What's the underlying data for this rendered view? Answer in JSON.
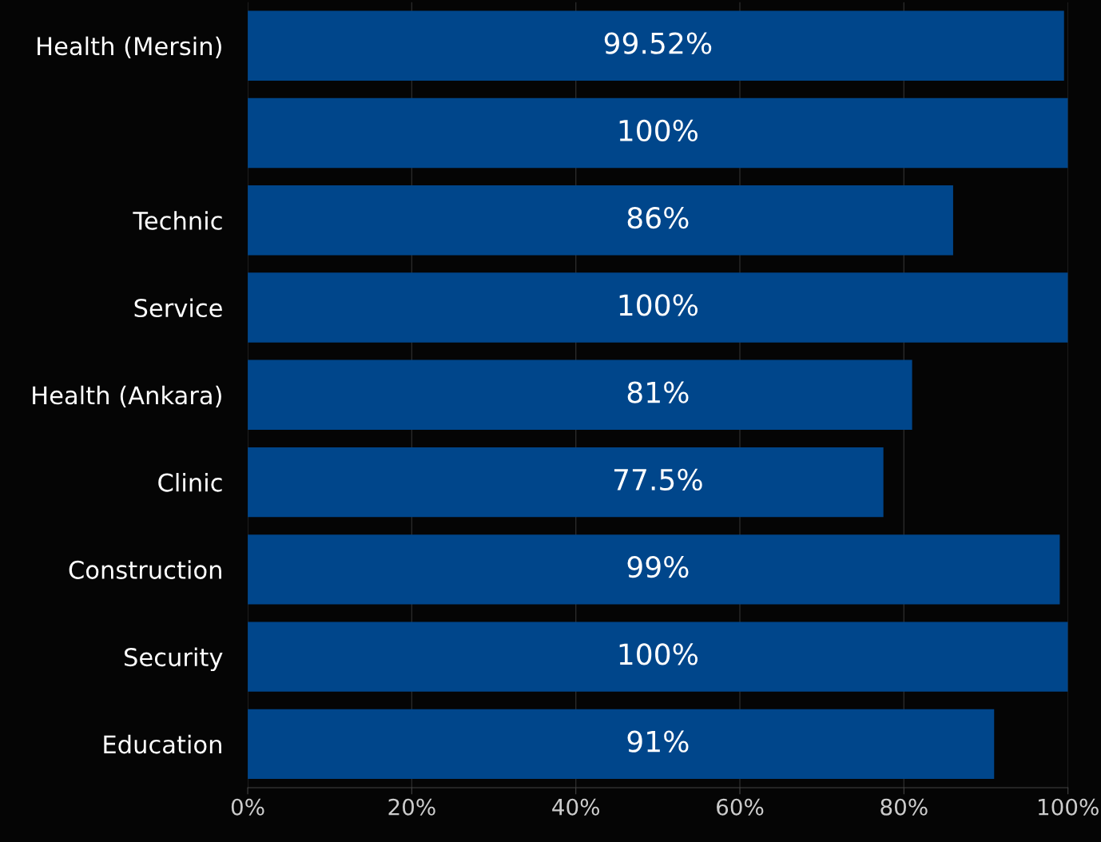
{
  "chart_data": {
    "type": "bar",
    "orientation": "horizontal",
    "categories": [
      "Health (Mersin)",
      null,
      "Technic",
      "Service",
      "Health (Ankara)",
      "Clinic",
      "Construction",
      "Security",
      "Education"
    ],
    "values": [
      99.52,
      100,
      86,
      100,
      81,
      77.5,
      99,
      100,
      91
    ],
    "value_labels": [
      "99.52%",
      "100%",
      "86%",
      "100%",
      "81%",
      "77.5%",
      "99%",
      "100%",
      "91%"
    ],
    "color": "#00468b",
    "xlim": [
      0,
      100
    ],
    "xticks": [
      {
        "value": 0,
        "label": "0%"
      },
      {
        "value": 20,
        "label": "20%"
      },
      {
        "value": 40,
        "label": "40%"
      },
      {
        "value": 60,
        "label": "60%"
      },
      {
        "value": 80,
        "label": "80%"
      },
      {
        "value": 100,
        "label": "100%"
      }
    ],
    "grid": "x",
    "legend": false
  }
}
